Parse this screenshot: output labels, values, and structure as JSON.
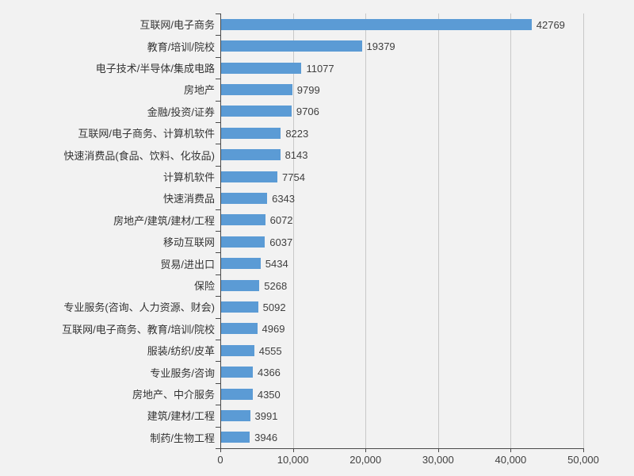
{
  "chart_data": {
    "type": "bar",
    "orientation": "horizontal",
    "title": "",
    "xlabel": "",
    "ylabel": "",
    "xlim": [
      0,
      50000
    ],
    "grid": "vertical-gridlines-on",
    "legend": "none",
    "categories": [
      "互联网/电子商务",
      "教育/培训/院校",
      "电子技术/半导体/集成电路",
      "房地产",
      "金融/投资/证券",
      "互联网/电子商务、计算机软件",
      "快速消费品(食品、饮料、化妆品)",
      "计算机软件",
      "快速消费品",
      "房地产/建筑/建材/工程",
      "移动互联网",
      "贸易/进出口",
      "保险",
      "专业服务(咨询、人力资源、财会)",
      "互联网/电子商务、教育/培训/院校",
      "服装/纺织/皮革",
      "专业服务/咨询",
      "房地产、中介服务",
      "建筑/建材/工程",
      "制药/生物工程"
    ],
    "values": [
      42769,
      19379,
      11077,
      9799,
      9706,
      8223,
      8143,
      7754,
      6343,
      6072,
      6037,
      5434,
      5268,
      5092,
      4969,
      4555,
      4366,
      4350,
      3991,
      3946
    ],
    "data_labels": [
      "42769",
      "19379",
      "11077",
      "9799",
      "9706",
      "8223",
      "8143",
      "7754",
      "6343",
      "6072",
      "6037",
      "5434",
      "5268",
      "5092",
      "4969",
      "4555",
      "4366",
      "4350",
      "3991",
      "3946"
    ],
    "x_ticks": [
      0,
      10000,
      20000,
      30000,
      40000,
      50000
    ],
    "x_tick_labels": [
      "0",
      "10,000",
      "20,000",
      "30,000",
      "40,000",
      "50,000"
    ],
    "colors": {
      "bar": "#5b9bd5",
      "background": "#f2f2f2",
      "gridline": "#c8c8c8",
      "axis": "#4a4a4a",
      "value_text": "#404040",
      "category_text": "#333333",
      "tick_text": "#404040"
    }
  }
}
